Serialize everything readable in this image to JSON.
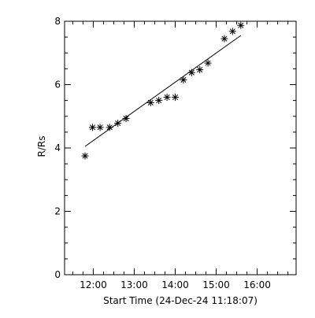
{
  "chart_data": {
    "type": "scatter",
    "xlabel": "Start Time (24-Dec-24 11:18:07)",
    "ylabel": "R/Rs",
    "x_ticks": [
      "12:00",
      "13:00",
      "14:00",
      "15:00",
      "16:00"
    ],
    "x_tick_hours": [
      12,
      13,
      14,
      15,
      16
    ],
    "xlim_hours": [
      11.3,
      16.95
    ],
    "y_ticks": [
      "0",
      "2",
      "4",
      "6",
      "8"
    ],
    "y_tick_values": [
      0,
      2,
      4,
      6,
      8
    ],
    "ylim": [
      0,
      8
    ],
    "grid": false,
    "marker": "asterisk",
    "series": [
      {
        "times": [
          "11:48",
          "11:59",
          "12:10",
          "12:24",
          "12:36",
          "12:48",
          "13:24",
          "13:36",
          "13:48",
          "14:00",
          "14:12",
          "14:24",
          "14:36",
          "14:48",
          "15:12",
          "15:24",
          "15:36"
        ],
        "values": [
          3.75,
          4.65,
          4.65,
          4.65,
          4.78,
          4.93,
          5.43,
          5.5,
          5.6,
          5.6,
          6.15,
          6.38,
          6.47,
          6.68,
          7.45,
          7.68,
          7.87
        ]
      }
    ],
    "fit_line": {
      "times": [
        "11:48",
        "15:36"
      ],
      "values": [
        4.05,
        7.55
      ]
    },
    "colors": {
      "axes": "#000000",
      "markers": "#000000",
      "fit_line": "#000000",
      "background": "#ffffff"
    }
  }
}
